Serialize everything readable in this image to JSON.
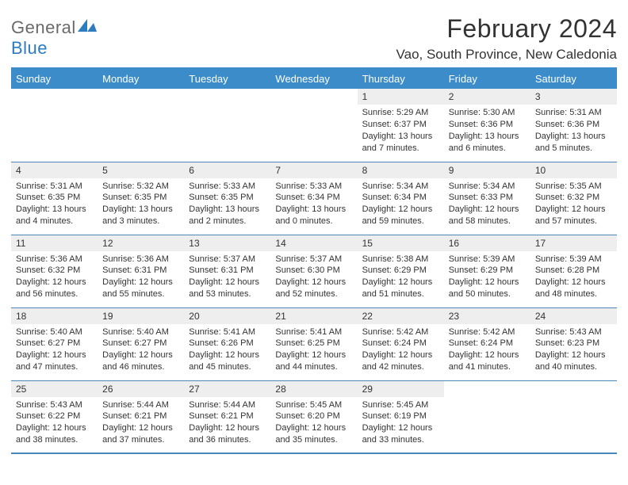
{
  "brand": {
    "name1": "General",
    "name2": "Blue"
  },
  "title": "February 2024",
  "location": "Vao, South Province, New Caledonia",
  "colors": {
    "header_bg": "#3b8cc9",
    "header_text": "#ffffff",
    "daynum_bg": "#eeeeee",
    "rule": "#4a86b8",
    "text": "#333333",
    "brand_gray": "#6a6a6a",
    "brand_blue": "#2f7bbf",
    "page_bg": "#ffffff"
  },
  "typography": {
    "title_fontsize": 32,
    "location_fontsize": 17,
    "dayheader_fontsize": 13,
    "daynum_fontsize": 12,
    "body_fontsize": 11,
    "font_family": "Arial"
  },
  "columns": [
    "Sunday",
    "Monday",
    "Tuesday",
    "Wednesday",
    "Thursday",
    "Friday",
    "Saturday"
  ],
  "weeks": [
    [
      {
        "date": "",
        "sunrise": "",
        "sunset": "",
        "daylight1": "",
        "daylight2": ""
      },
      {
        "date": "",
        "sunrise": "",
        "sunset": "",
        "daylight1": "",
        "daylight2": ""
      },
      {
        "date": "",
        "sunrise": "",
        "sunset": "",
        "daylight1": "",
        "daylight2": ""
      },
      {
        "date": "",
        "sunrise": "",
        "sunset": "",
        "daylight1": "",
        "daylight2": ""
      },
      {
        "date": "1",
        "sunrise": "Sunrise: 5:29 AM",
        "sunset": "Sunset: 6:37 PM",
        "daylight1": "Daylight: 13 hours",
        "daylight2": "and 7 minutes."
      },
      {
        "date": "2",
        "sunrise": "Sunrise: 5:30 AM",
        "sunset": "Sunset: 6:36 PM",
        "daylight1": "Daylight: 13 hours",
        "daylight2": "and 6 minutes."
      },
      {
        "date": "3",
        "sunrise": "Sunrise: 5:31 AM",
        "sunset": "Sunset: 6:36 PM",
        "daylight1": "Daylight: 13 hours",
        "daylight2": "and 5 minutes."
      }
    ],
    [
      {
        "date": "4",
        "sunrise": "Sunrise: 5:31 AM",
        "sunset": "Sunset: 6:35 PM",
        "daylight1": "Daylight: 13 hours",
        "daylight2": "and 4 minutes."
      },
      {
        "date": "5",
        "sunrise": "Sunrise: 5:32 AM",
        "sunset": "Sunset: 6:35 PM",
        "daylight1": "Daylight: 13 hours",
        "daylight2": "and 3 minutes."
      },
      {
        "date": "6",
        "sunrise": "Sunrise: 5:33 AM",
        "sunset": "Sunset: 6:35 PM",
        "daylight1": "Daylight: 13 hours",
        "daylight2": "and 2 minutes."
      },
      {
        "date": "7",
        "sunrise": "Sunrise: 5:33 AM",
        "sunset": "Sunset: 6:34 PM",
        "daylight1": "Daylight: 13 hours",
        "daylight2": "and 0 minutes."
      },
      {
        "date": "8",
        "sunrise": "Sunrise: 5:34 AM",
        "sunset": "Sunset: 6:34 PM",
        "daylight1": "Daylight: 12 hours",
        "daylight2": "and 59 minutes."
      },
      {
        "date": "9",
        "sunrise": "Sunrise: 5:34 AM",
        "sunset": "Sunset: 6:33 PM",
        "daylight1": "Daylight: 12 hours",
        "daylight2": "and 58 minutes."
      },
      {
        "date": "10",
        "sunrise": "Sunrise: 5:35 AM",
        "sunset": "Sunset: 6:32 PM",
        "daylight1": "Daylight: 12 hours",
        "daylight2": "and 57 minutes."
      }
    ],
    [
      {
        "date": "11",
        "sunrise": "Sunrise: 5:36 AM",
        "sunset": "Sunset: 6:32 PM",
        "daylight1": "Daylight: 12 hours",
        "daylight2": "and 56 minutes."
      },
      {
        "date": "12",
        "sunrise": "Sunrise: 5:36 AM",
        "sunset": "Sunset: 6:31 PM",
        "daylight1": "Daylight: 12 hours",
        "daylight2": "and 55 minutes."
      },
      {
        "date": "13",
        "sunrise": "Sunrise: 5:37 AM",
        "sunset": "Sunset: 6:31 PM",
        "daylight1": "Daylight: 12 hours",
        "daylight2": "and 53 minutes."
      },
      {
        "date": "14",
        "sunrise": "Sunrise: 5:37 AM",
        "sunset": "Sunset: 6:30 PM",
        "daylight1": "Daylight: 12 hours",
        "daylight2": "and 52 minutes."
      },
      {
        "date": "15",
        "sunrise": "Sunrise: 5:38 AM",
        "sunset": "Sunset: 6:29 PM",
        "daylight1": "Daylight: 12 hours",
        "daylight2": "and 51 minutes."
      },
      {
        "date": "16",
        "sunrise": "Sunrise: 5:39 AM",
        "sunset": "Sunset: 6:29 PM",
        "daylight1": "Daylight: 12 hours",
        "daylight2": "and 50 minutes."
      },
      {
        "date": "17",
        "sunrise": "Sunrise: 5:39 AM",
        "sunset": "Sunset: 6:28 PM",
        "daylight1": "Daylight: 12 hours",
        "daylight2": "and 48 minutes."
      }
    ],
    [
      {
        "date": "18",
        "sunrise": "Sunrise: 5:40 AM",
        "sunset": "Sunset: 6:27 PM",
        "daylight1": "Daylight: 12 hours",
        "daylight2": "and 47 minutes."
      },
      {
        "date": "19",
        "sunrise": "Sunrise: 5:40 AM",
        "sunset": "Sunset: 6:27 PM",
        "daylight1": "Daylight: 12 hours",
        "daylight2": "and 46 minutes."
      },
      {
        "date": "20",
        "sunrise": "Sunrise: 5:41 AM",
        "sunset": "Sunset: 6:26 PM",
        "daylight1": "Daylight: 12 hours",
        "daylight2": "and 45 minutes."
      },
      {
        "date": "21",
        "sunrise": "Sunrise: 5:41 AM",
        "sunset": "Sunset: 6:25 PM",
        "daylight1": "Daylight: 12 hours",
        "daylight2": "and 44 minutes."
      },
      {
        "date": "22",
        "sunrise": "Sunrise: 5:42 AM",
        "sunset": "Sunset: 6:24 PM",
        "daylight1": "Daylight: 12 hours",
        "daylight2": "and 42 minutes."
      },
      {
        "date": "23",
        "sunrise": "Sunrise: 5:42 AM",
        "sunset": "Sunset: 6:24 PM",
        "daylight1": "Daylight: 12 hours",
        "daylight2": "and 41 minutes."
      },
      {
        "date": "24",
        "sunrise": "Sunrise: 5:43 AM",
        "sunset": "Sunset: 6:23 PM",
        "daylight1": "Daylight: 12 hours",
        "daylight2": "and 40 minutes."
      }
    ],
    [
      {
        "date": "25",
        "sunrise": "Sunrise: 5:43 AM",
        "sunset": "Sunset: 6:22 PM",
        "daylight1": "Daylight: 12 hours",
        "daylight2": "and 38 minutes."
      },
      {
        "date": "26",
        "sunrise": "Sunrise: 5:44 AM",
        "sunset": "Sunset: 6:21 PM",
        "daylight1": "Daylight: 12 hours",
        "daylight2": "and 37 minutes."
      },
      {
        "date": "27",
        "sunrise": "Sunrise: 5:44 AM",
        "sunset": "Sunset: 6:21 PM",
        "daylight1": "Daylight: 12 hours",
        "daylight2": "and 36 minutes."
      },
      {
        "date": "28",
        "sunrise": "Sunrise: 5:45 AM",
        "sunset": "Sunset: 6:20 PM",
        "daylight1": "Daylight: 12 hours",
        "daylight2": "and 35 minutes."
      },
      {
        "date": "29",
        "sunrise": "Sunrise: 5:45 AM",
        "sunset": "Sunset: 6:19 PM",
        "daylight1": "Daylight: 12 hours",
        "daylight2": "and 33 minutes."
      },
      {
        "date": "",
        "sunrise": "",
        "sunset": "",
        "daylight1": "",
        "daylight2": ""
      },
      {
        "date": "",
        "sunrise": "",
        "sunset": "",
        "daylight1": "",
        "daylight2": ""
      }
    ]
  ]
}
